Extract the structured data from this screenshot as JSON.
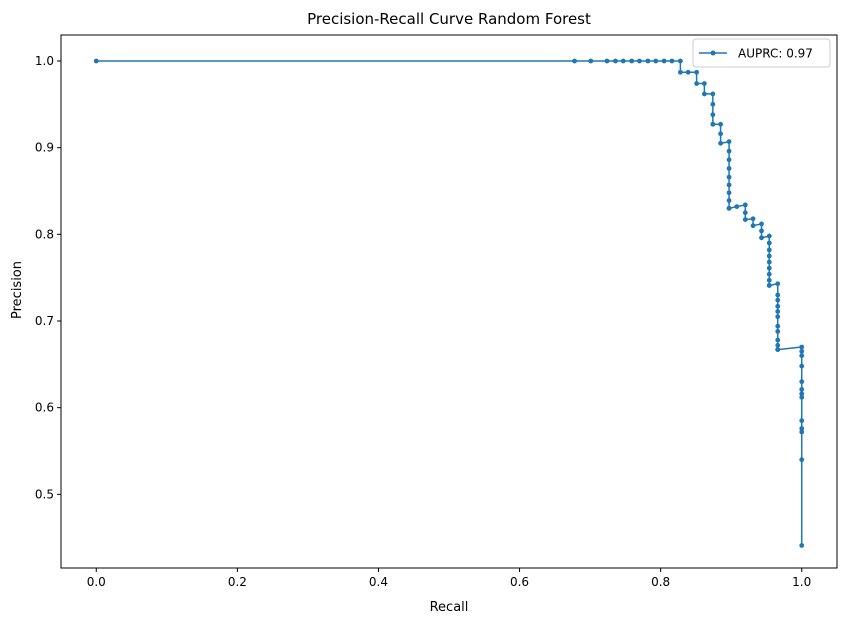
{
  "chart_data": {
    "type": "line",
    "title": "Precision-Recall Curve Random Forest",
    "xlabel": "Recall",
    "ylabel": "Precision",
    "xlim": [
      -0.05,
      1.05
    ],
    "ylim": [
      0.415,
      1.03
    ],
    "xticks": [
      0.0,
      0.2,
      0.4,
      0.6,
      0.8,
      1.0
    ],
    "xtick_labels": [
      "0.0",
      "0.2",
      "0.4",
      "0.6",
      "0.8",
      "1.0"
    ],
    "yticks": [
      0.5,
      0.6,
      0.7,
      0.8,
      0.9,
      1.0
    ],
    "ytick_labels": [
      "0.5",
      "0.6",
      "0.7",
      "0.8",
      "0.9",
      "1.0"
    ],
    "grid": false,
    "legend_position": "top-right",
    "series_color": "#1f77b4",
    "series": [
      {
        "name": "AUPRC: 0.97",
        "marker": "dot",
        "x": [
          0.0,
          0.678,
          0.701,
          0.724,
          0.736,
          0.747,
          0.759,
          0.77,
          0.782,
          0.793,
          0.805,
          0.816,
          0.828,
          0.828,
          0.839,
          0.851,
          0.851,
          0.862,
          0.862,
          0.874,
          0.874,
          0.874,
          0.874,
          0.874,
          0.885,
          0.885,
          0.885,
          0.897,
          0.897,
          0.897,
          0.897,
          0.897,
          0.897,
          0.897,
          0.897,
          0.897,
          0.897,
          0.908,
          0.92,
          0.92,
          0.92,
          0.931,
          0.931,
          0.943,
          0.943,
          0.943,
          0.954,
          0.954,
          0.954,
          0.954,
          0.954,
          0.954,
          0.954,
          0.954,
          0.954,
          0.954,
          0.966,
          0.966,
          0.966,
          0.966,
          0.966,
          0.966,
          0.966,
          0.966,
          0.966,
          0.966,
          0.966,
          0.966,
          1.0,
          1.0,
          1.0,
          1.0,
          1.0,
          1.0,
          1.0,
          1.0,
          1.0,
          1.0,
          1.0,
          1.0,
          1.0
        ],
        "y": [
          1.0,
          1.0,
          1.0,
          1.0,
          1.0,
          1.0,
          1.0,
          1.0,
          1.0,
          1.0,
          1.0,
          1.0,
          1.0,
          0.987,
          0.987,
          0.987,
          0.974,
          0.974,
          0.962,
          0.962,
          0.95,
          0.938,
          0.927,
          0.927,
          0.927,
          0.916,
          0.905,
          0.907,
          0.896,
          0.886,
          0.876,
          0.866,
          0.857,
          0.848,
          0.839,
          0.83,
          0.83,
          0.832,
          0.834,
          0.825,
          0.817,
          0.818,
          0.81,
          0.812,
          0.804,
          0.796,
          0.798,
          0.79,
          0.782,
          0.775,
          0.768,
          0.761,
          0.754,
          0.747,
          0.741,
          0.741,
          0.743,
          0.73,
          0.724,
          0.717,
          0.711,
          0.705,
          0.694,
          0.688,
          0.678,
          0.672,
          0.667,
          0.667,
          0.67,
          0.665,
          0.66,
          0.648,
          0.63,
          0.621,
          0.616,
          0.612,
          0.585,
          0.576,
          0.572,
          0.54,
          0.441
        ]
      }
    ]
  }
}
